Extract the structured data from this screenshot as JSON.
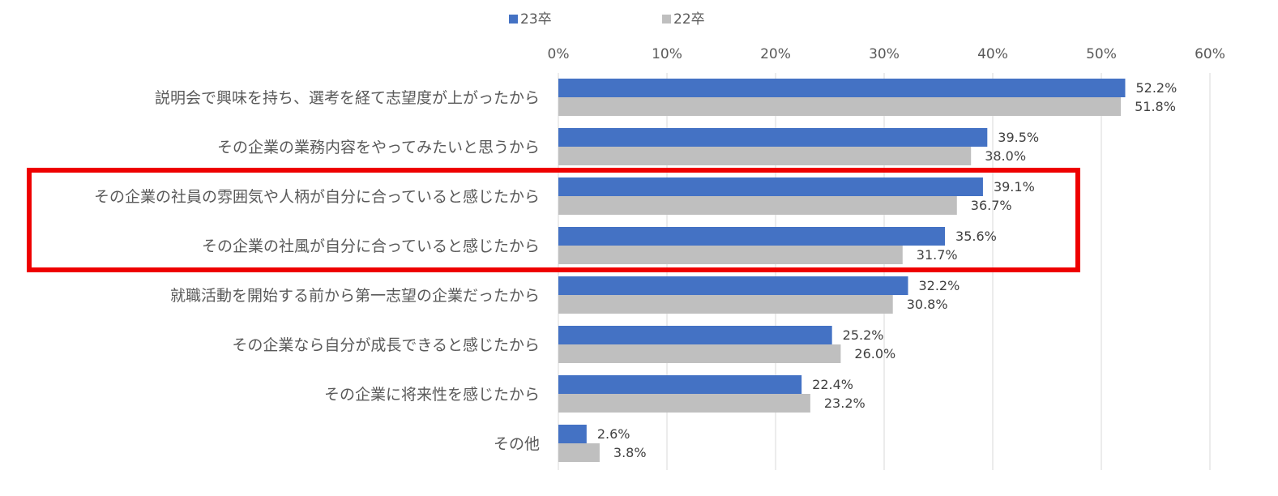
{
  "chart_data": {
    "type": "bar",
    "orientation": "horizontal",
    "categories": [
      "説明会で興味を持ち、選考を経て志望度が上がったから",
      "その企業の業務内容をやってみたいと思うから",
      "その企業の社員の雰囲気や人柄が自分に合っていると感じたから",
      "その企業の社風が自分に合っていると感じたから",
      "就職活動を開始する前から第一志望の企業だったから",
      "その企業なら自分が成長できると感じたから",
      "その企業に将来性を感じたから",
      "その他"
    ],
    "series": [
      {
        "name": "23卒",
        "color": "#4472c4",
        "values": [
          52.2,
          39.5,
          39.1,
          35.6,
          32.2,
          25.2,
          22.4,
          2.6
        ],
        "labels": [
          "52.2%",
          "39.5%",
          "39.1%",
          "35.6%",
          "32.2%",
          "25.2%",
          "22.4%",
          "2.6%"
        ]
      },
      {
        "name": "22卒",
        "color": "#bfbfbf",
        "values": [
          51.8,
          38.0,
          36.7,
          31.7,
          30.8,
          26.0,
          23.2,
          3.8
        ],
        "labels": [
          "51.8%",
          "38.0%",
          "36.7%",
          "31.7%",
          "30.8%",
          "26.0%",
          "23.2%",
          "3.8%"
        ]
      }
    ],
    "xlim": [
      0,
      60
    ],
    "xticks": [
      0,
      10,
      20,
      30,
      40,
      50,
      60
    ],
    "xtick_labels": [
      "0%",
      "10%",
      "20%",
      "30%",
      "40%",
      "50%",
      "60%"
    ],
    "grid": true,
    "legend_position": "top",
    "highlight": {
      "categories": [
        2,
        3
      ],
      "color": "#ee0000"
    }
  }
}
